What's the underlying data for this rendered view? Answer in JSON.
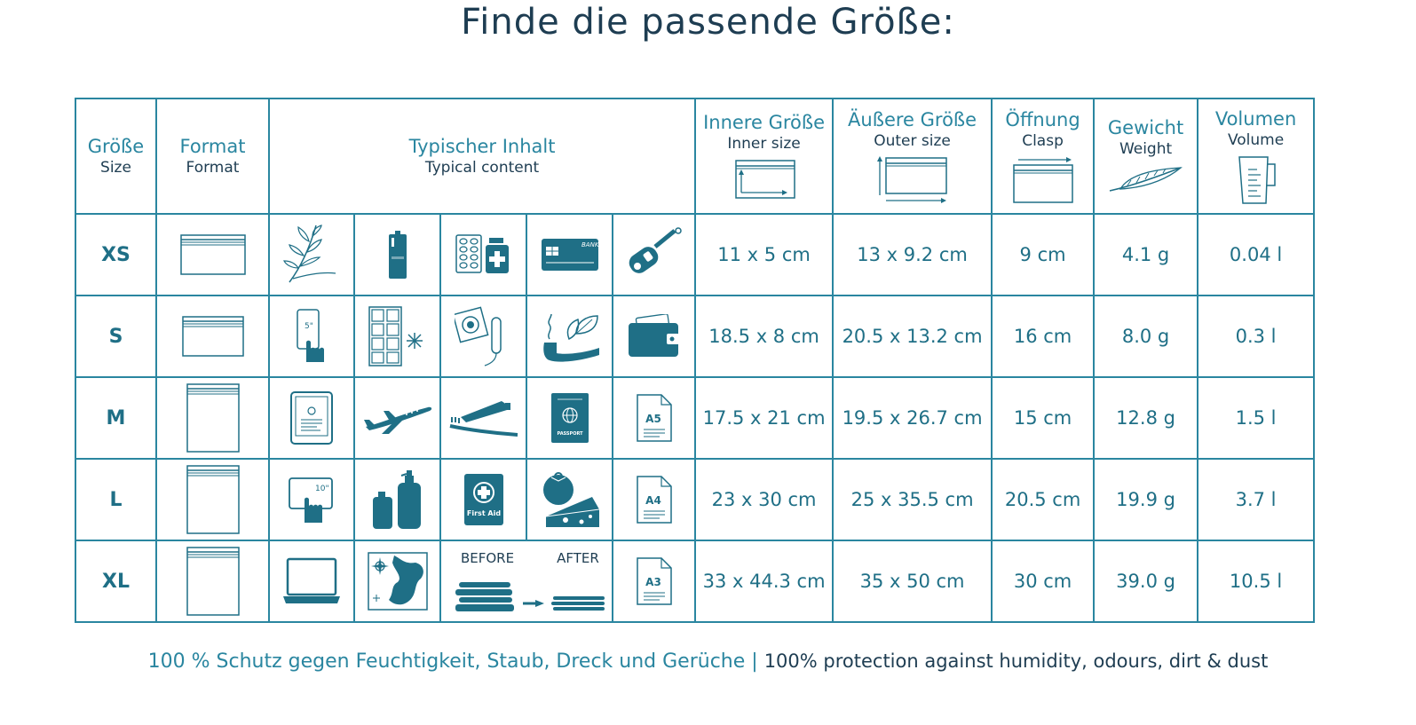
{
  "title": "Finde die passende Größe:",
  "headers": {
    "size": {
      "de": "Größe",
      "en": "Size"
    },
    "format": {
      "de": "Format",
      "en": "Format"
    },
    "content": {
      "de": "Typischer Inhalt",
      "en": "Typical content"
    },
    "inner": {
      "de": "Innere Größe",
      "en": "Inner size"
    },
    "outer": {
      "de": "Äußere Größe",
      "en": "Outer size"
    },
    "opening": {
      "de": "Öffnung",
      "en": "Clasp"
    },
    "weight": {
      "de": "Gewicht",
      "en": "Weight"
    },
    "volume": {
      "de": "Volumen",
      "en": "Volume"
    }
  },
  "rows": [
    {
      "size": "XS",
      "format": "landscape",
      "icons": [
        "herb-icon",
        "battery-icon",
        "medicine-icon",
        "bank-card-icon",
        "car-key-icon"
      ],
      "inner": "11 x 5 cm",
      "outer": "13 x 9.2 cm",
      "opening": "9 cm",
      "weight": "4.1 g",
      "volume": "0.04 l"
    },
    {
      "size": "S",
      "format": "landscape",
      "icons": [
        "smartphone-5in-icon",
        "ice-cube-tray-icon",
        "condom-tampon-icon",
        "pipe-tobacco-icon",
        "wallet-icon"
      ],
      "inner": "18.5 x 8 cm",
      "outer": "20.5 x 13.2 cm",
      "opening": "16 cm",
      "weight": "8.0 g",
      "volume": "0.3 l"
    },
    {
      "size": "M",
      "format": "portrait",
      "icons": [
        "ereader-icon",
        "airplane-icon",
        "toothbrush-toothpaste-icon",
        "passport-icon",
        "document-a5-icon"
      ],
      "inner": "17.5 x 21 cm",
      "outer": "19.5 x 26.7 cm",
      "opening": "15 cm",
      "weight": "12.8 g",
      "volume": "1.5 l"
    },
    {
      "size": "L",
      "format": "portrait",
      "icons": [
        "tablet-10in-icon",
        "bottles-icon",
        "first-aid-kit-icon",
        "tomato-cheese-icon",
        "document-a4-icon"
      ],
      "inner": "23 x 30 cm",
      "outer": "25 x 35.5 cm",
      "opening": "20.5 cm",
      "weight": "19.9 g",
      "volume": "3.7 l"
    },
    {
      "size": "XL",
      "format": "portrait",
      "icons": [
        "laptop-icon",
        "map-icon",
        "compressed-clothes-icon",
        "document-a3-icon"
      ],
      "inner": "33 x 44.3 cm",
      "outer": "35 x 50 cm",
      "opening": "30 cm",
      "weight": "39.0 g",
      "volume": "10.5 l"
    }
  ],
  "icon_text": {
    "card_bank": "BANK",
    "phone_size": "5\"",
    "tablet_size": "10\"",
    "passport": "PASSPORT",
    "first_aid": "First Aid",
    "a5": "A5",
    "a4": "A4",
    "a3": "A3",
    "before": "BEFORE",
    "after": "AFTER"
  },
  "footer": {
    "de": "100 % Schutz gegen Feuchtigkeit, Staub, Dreck und Gerüche | ",
    "en": "100% protection against humidity, odours, dirt & dust"
  },
  "colors": {
    "accent": "#2a86a0",
    "dark": "#1e3d52",
    "icon": "#1f6f86"
  }
}
